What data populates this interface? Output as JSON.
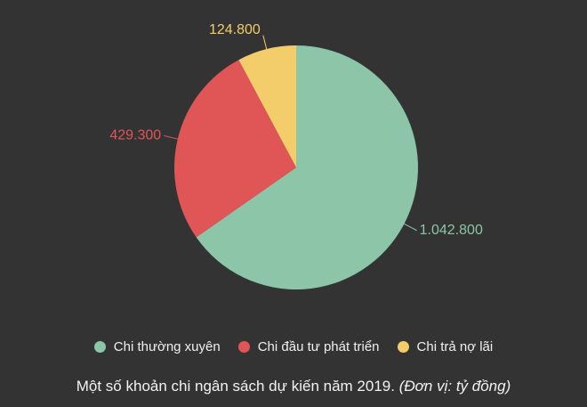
{
  "chart_data": {
    "type": "pie",
    "categories": [
      "Chi thường xuyên",
      "Chi đầu tư phát triển",
      "Chi trả nợ lãi"
    ],
    "values": [
      1042800,
      429300,
      124800
    ],
    "value_labels": [
      "1.042.800",
      "429.300",
      "124.800"
    ],
    "colors": [
      "#8cc5a8",
      "#e05656",
      "#f2cd6a"
    ],
    "title": "Một số khoản chi ngân sách dự kiến năm 2019.",
    "unit_note": "(Đơn vị: tỷ đồng)",
    "legend_position": "bottom"
  },
  "background_color": "#333333"
}
